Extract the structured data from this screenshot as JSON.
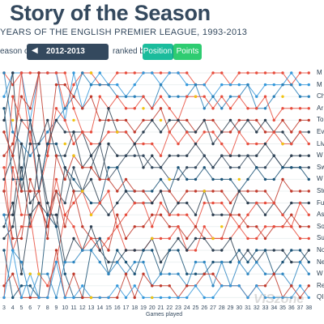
{
  "header": {
    "title": "Story of the Season",
    "subtitle": "YEARS OF THE ENGLISH PREMIER LEAGUE, 1993-2013"
  },
  "controls": {
    "season_label": "eason of",
    "season_value": "2012-2013",
    "ranked_by_label": "ranked by",
    "position_label": "Position",
    "points_label": "Points"
  },
  "watermark": "VISzone",
  "chart_data": {
    "type": "line",
    "xlabel": "Games played",
    "x_ticks": [
      3,
      4,
      5,
      6,
      7,
      8,
      9,
      10,
      11,
      12,
      13,
      14,
      15,
      16,
      17,
      18,
      19,
      20,
      21,
      22,
      23,
      24,
      25,
      26,
      27,
      28,
      29,
      30,
      31,
      32,
      33,
      34,
      35,
      36,
      37,
      38
    ],
    "teams": [
      {
        "label": "M",
        "color": "#e74c3c"
      },
      {
        "label": "M",
        "color": "#3498db"
      },
      {
        "label": "Ch",
        "color": "#2980b9"
      },
      {
        "label": "Ar",
        "color": "#e74c3c"
      },
      {
        "label": "To",
        "color": "#c0392b"
      },
      {
        "label": "Ev",
        "color": "#2c3e50"
      },
      {
        "label": "Liv",
        "color": "#e74c3c"
      },
      {
        "label": "W",
        "color": "#2c3e50"
      },
      {
        "label": "Sw",
        "color": "#34495e"
      },
      {
        "label": "W",
        "color": "#1a5276"
      },
      {
        "label": "Sto",
        "color": "#c0392b"
      },
      {
        "label": "Fu",
        "color": "#2c3e50"
      },
      {
        "label": "As",
        "color": "#e74c3c"
      },
      {
        "label": "So",
        "color": "#c0392b"
      },
      {
        "label": "Su",
        "color": "#e74c3c"
      },
      {
        "label": "No",
        "color": "#2c3e50"
      },
      {
        "label": "Ne",
        "color": "#1a5276"
      },
      {
        "label": "W",
        "color": "#2e86c1"
      },
      {
        "label": "Re",
        "color": "#c0392b"
      },
      {
        "label": "QI",
        "color": "#3498db"
      }
    ],
    "series_yellow_color": "#f1c40f"
  }
}
